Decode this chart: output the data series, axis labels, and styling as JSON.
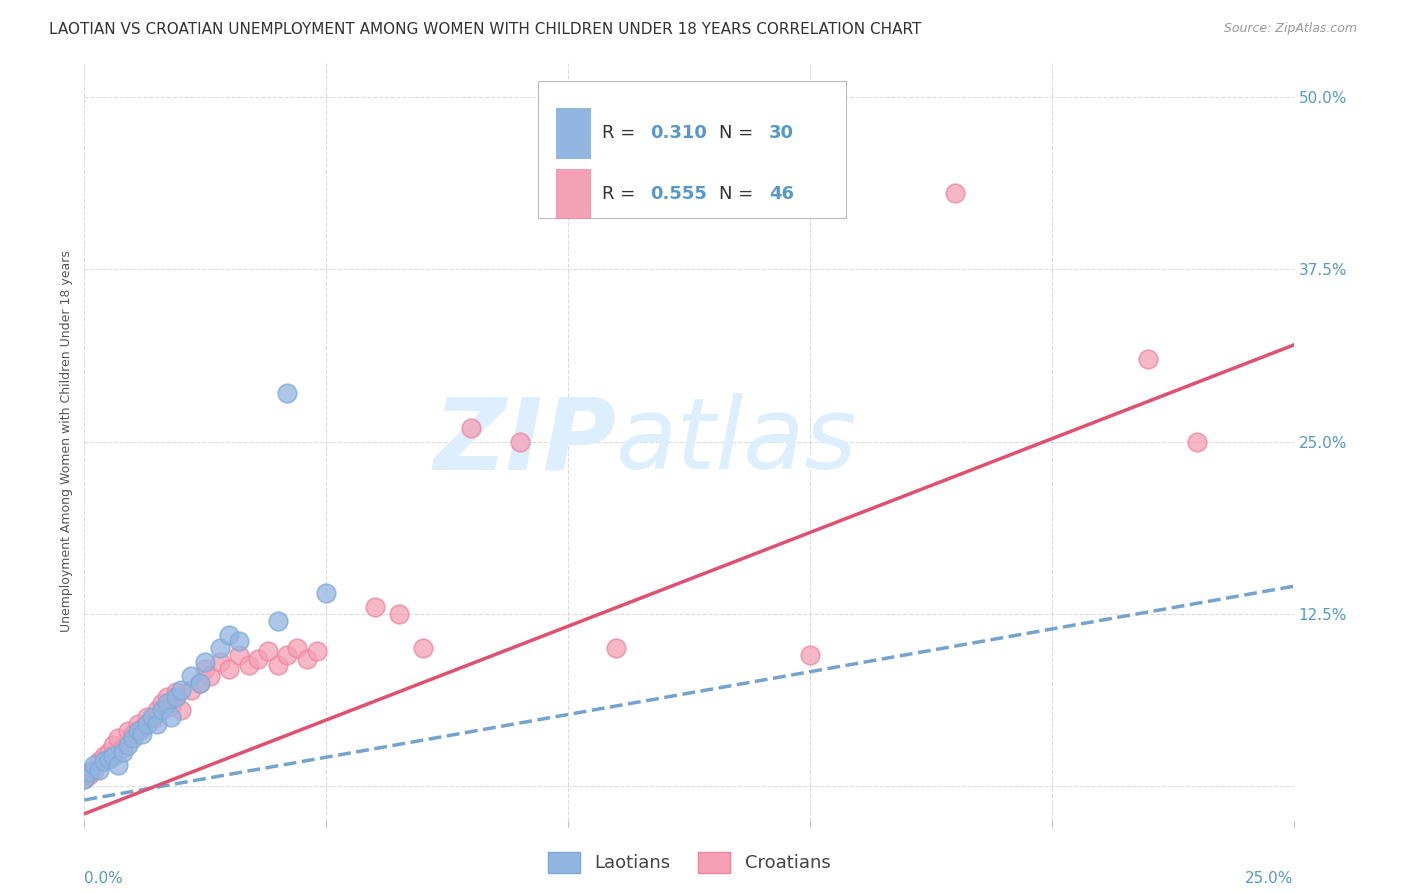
{
  "title": "LAOTIAN VS CROATIAN UNEMPLOYMENT AMONG WOMEN WITH CHILDREN UNDER 18 YEARS CORRELATION CHART",
  "source": "Source: ZipAtlas.com",
  "ylabel": "Unemployment Among Women with Children Under 18 years",
  "ytick_values": [
    0.0,
    0.125,
    0.25,
    0.375,
    0.5
  ],
  "ytick_labels": [
    "",
    "12.5%",
    "25.0%",
    "37.5%",
    "50.0%"
  ],
  "xlim": [
    0.0,
    0.25
  ],
  "ylim": [
    -0.025,
    0.525
  ],
  "laotian_color": "#93b5e1",
  "laotian_edge_color": "#7aaad8",
  "croatian_color": "#f4a0b5",
  "croatian_edge_color": "#ee85a0",
  "laotian_R": 0.31,
  "laotian_N": 30,
  "croatian_R": 0.555,
  "croatian_N": 46,
  "lao_line_color": "#6699cc",
  "cro_line_color": "#e05070",
  "background_color": "#ffffff",
  "grid_color": "#cccccc",
  "tick_color": "#5599cc",
  "title_fontsize": 11,
  "axis_label_fontsize": 9,
  "tick_fontsize": 11,
  "legend_fontsize": 13,
  "watermark_color": "#ddeeff",
  "lao_x": [
    0.0,
    0.001,
    0.002,
    0.003,
    0.004,
    0.005,
    0.006,
    0.007,
    0.008,
    0.009,
    0.01,
    0.011,
    0.012,
    0.013,
    0.014,
    0.015,
    0.016,
    0.017,
    0.018,
    0.019,
    0.02,
    0.022,
    0.024,
    0.025,
    0.028,
    0.03,
    0.032,
    0.04,
    0.042,
    0.05
  ],
  "lao_y": [
    0.005,
    0.01,
    0.015,
    0.012,
    0.018,
    0.02,
    0.022,
    0.015,
    0.025,
    0.03,
    0.035,
    0.04,
    0.038,
    0.045,
    0.05,
    0.045,
    0.055,
    0.06,
    0.05,
    0.065,
    0.07,
    0.08,
    0.075,
    0.09,
    0.1,
    0.11,
    0.105,
    0.12,
    0.285,
    0.14
  ],
  "cro_x": [
    0.0,
    0.001,
    0.002,
    0.003,
    0.004,
    0.005,
    0.006,
    0.007,
    0.008,
    0.009,
    0.01,
    0.011,
    0.012,
    0.013,
    0.014,
    0.015,
    0.016,
    0.017,
    0.018,
    0.019,
    0.02,
    0.022,
    0.024,
    0.025,
    0.026,
    0.028,
    0.03,
    0.032,
    0.034,
    0.036,
    0.038,
    0.04,
    0.042,
    0.044,
    0.046,
    0.048,
    0.06,
    0.065,
    0.07,
    0.08,
    0.09,
    0.11,
    0.15,
    0.18,
    0.22,
    0.23
  ],
  "cro_y": [
    0.005,
    0.008,
    0.012,
    0.018,
    0.022,
    0.025,
    0.03,
    0.035,
    0.028,
    0.04,
    0.038,
    0.045,
    0.042,
    0.05,
    0.048,
    0.055,
    0.06,
    0.065,
    0.058,
    0.068,
    0.055,
    0.07,
    0.075,
    0.085,
    0.08,
    0.09,
    0.085,
    0.095,
    0.088,
    0.092,
    0.098,
    0.088,
    0.095,
    0.1,
    0.092,
    0.098,
    0.13,
    0.125,
    0.1,
    0.26,
    0.25,
    0.1,
    0.095,
    0.43,
    0.31,
    0.25
  ],
  "lao_line_x0": 0.0,
  "lao_line_y0": -0.01,
  "lao_line_x1": 0.25,
  "lao_line_y1": 0.145,
  "cro_line_x0": 0.0,
  "cro_line_y0": -0.02,
  "cro_line_x1": 0.25,
  "cro_line_y1": 0.32
}
